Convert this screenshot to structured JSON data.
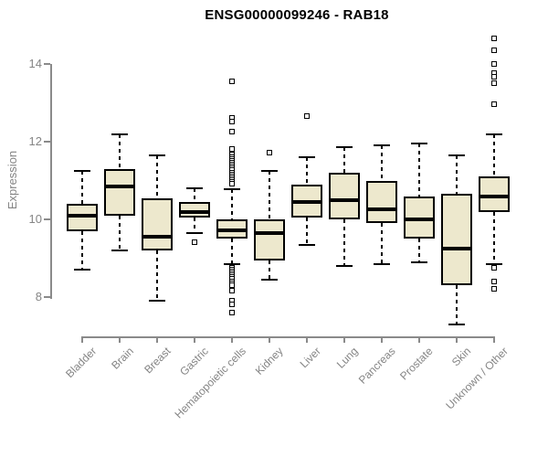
{
  "chart_data": {
    "type": "boxplot",
    "title": "ENSG00000099246 - RAB18",
    "xlabel": "",
    "ylabel": "Expression",
    "ylim": [
      8,
      14
    ],
    "yticks": [
      8,
      10,
      12,
      14
    ],
    "grid": false,
    "legend": false,
    "colors": {
      "box_fill": "#EDE8CD",
      "box_border": "#000000",
      "axis_line": "#8a8a8a",
      "axis_text": "#858585",
      "title_text": "#000000"
    },
    "categories": [
      "Bladder",
      "Brain",
      "Breast",
      "Gastric",
      "Hematopoietic cells",
      "Kidney",
      "Liver",
      "Lung",
      "Pancreas",
      "Prostate",
      "Skin",
      "Unknown / Other"
    ],
    "series": [
      {
        "category": "Bladder",
        "whisker_low": 8.7,
        "q1": 9.7,
        "median": 10.1,
        "q3": 10.4,
        "whisker_high": 11.25,
        "outliers": []
      },
      {
        "category": "Brain",
        "whisker_low": 9.2,
        "q1": 10.1,
        "median": 10.85,
        "q3": 11.3,
        "whisker_high": 12.2,
        "outliers": []
      },
      {
        "category": "Breast",
        "whisker_low": 7.9,
        "q1": 9.2,
        "median": 9.55,
        "q3": 10.55,
        "whisker_high": 11.65,
        "outliers": []
      },
      {
        "category": "Gastric",
        "whisker_low": 9.65,
        "q1": 10.05,
        "median": 10.2,
        "q3": 10.45,
        "whisker_high": 10.8,
        "outliers": [
          9.4
        ]
      },
      {
        "category": "Hematopoietic cells",
        "whisker_low": 8.85,
        "q1": 9.5,
        "median": 9.72,
        "q3": 10.0,
        "whisker_high": 10.78,
        "outliers": [
          13.55,
          12.6,
          12.5,
          12.25,
          11.8,
          11.65,
          11.6,
          11.55,
          11.5,
          11.45,
          11.4,
          11.35,
          11.3,
          11.25,
          11.2,
          11.15,
          11.1,
          11.05,
          11.0,
          10.95,
          10.9,
          8.75,
          8.7,
          8.65,
          8.6,
          8.55,
          8.5,
          8.45,
          8.4,
          8.35,
          8.3,
          8.15,
          7.9,
          7.8,
          7.6
        ]
      },
      {
        "category": "Kidney",
        "whisker_low": 8.45,
        "q1": 8.95,
        "median": 9.65,
        "q3": 10.0,
        "whisker_high": 11.25,
        "outliers": [
          11.7
        ]
      },
      {
        "category": "Liver",
        "whisker_low": 9.35,
        "q1": 10.05,
        "median": 10.45,
        "q3": 10.9,
        "whisker_high": 11.6,
        "outliers": [
          12.65
        ]
      },
      {
        "category": "Lung",
        "whisker_low": 8.8,
        "q1": 10.0,
        "median": 10.5,
        "q3": 11.2,
        "whisker_high": 11.85,
        "outliers": []
      },
      {
        "category": "Pancreas",
        "whisker_low": 8.85,
        "q1": 9.9,
        "median": 10.25,
        "q3": 11.0,
        "whisker_high": 11.9,
        "outliers": []
      },
      {
        "category": "Prostate",
        "whisker_low": 8.9,
        "q1": 9.5,
        "median": 10.0,
        "q3": 10.6,
        "whisker_high": 11.95,
        "outliers": []
      },
      {
        "category": "Skin",
        "whisker_low": 7.3,
        "q1": 8.3,
        "median": 9.25,
        "q3": 10.65,
        "whisker_high": 11.65,
        "outliers": []
      },
      {
        "category": "Unknown / Other",
        "whisker_low": 8.85,
        "q1": 10.2,
        "median": 10.6,
        "q3": 11.1,
        "whisker_high": 12.2,
        "outliers": [
          14.65,
          14.35,
          14.0,
          13.75,
          13.65,
          13.5,
          12.95,
          8.75,
          8.4,
          8.2
        ]
      }
    ]
  }
}
